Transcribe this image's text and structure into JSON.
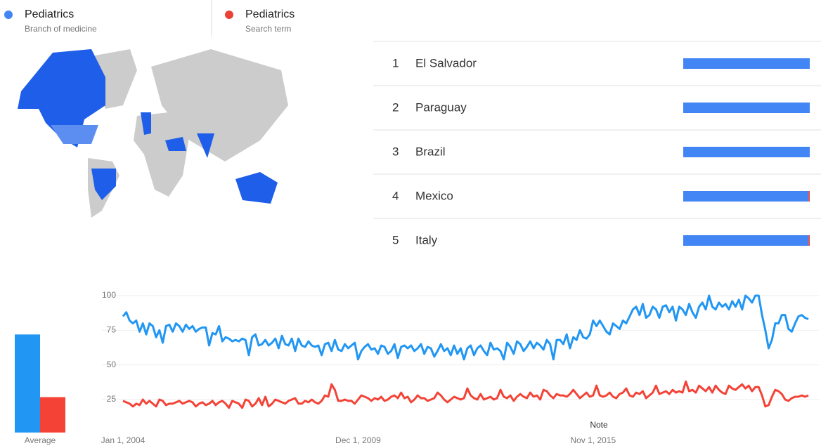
{
  "legend": [
    {
      "name": "Pediatrics",
      "subtitle": "Branch of medicine",
      "color": "#4285f4"
    },
    {
      "name": "Pediatrics",
      "subtitle": "Search term",
      "color": "#ea4335"
    }
  ],
  "regions": {
    "color": "#4285f4",
    "rows": [
      {
        "rank": 1,
        "name": "El Salvador",
        "values": [
          100,
          0
        ]
      },
      {
        "rank": 2,
        "name": "Paraguay",
        "values": [
          100,
          0
        ]
      },
      {
        "rank": 3,
        "name": "Brazil",
        "values": [
          100,
          0
        ]
      },
      {
        "rank": 4,
        "name": "Mexico",
        "values": [
          99,
          1
        ]
      },
      {
        "rank": 5,
        "name": "Italy",
        "values": [
          99,
          1
        ]
      }
    ]
  },
  "chart_data": [
    {
      "type": "bar",
      "categories": [
        "Average"
      ],
      "series": [
        {
          "name": "Pediatrics",
          "color": "#2196f3",
          "values": [
            72
          ]
        },
        {
          "name": "Pediatrics",
          "color": "#f44336",
          "values": [
            26
          ]
        }
      ],
      "ylim": [
        0,
        100
      ]
    },
    {
      "type": "line",
      "annotations": [
        "Note"
      ],
      "grid": true,
      "ylim": [
        0,
        100
      ],
      "yticks": [
        25,
        50,
        75,
        100
      ],
      "categories": [
        "Jan 1, 2004",
        null,
        null,
        null,
        null,
        null,
        null,
        null,
        null,
        null,
        null,
        null,
        null,
        null,
        null,
        null,
        null,
        null,
        null,
        null,
        null,
        null,
        null,
        null,
        null,
        null,
        null,
        null,
        null,
        null,
        null,
        null,
        null,
        null,
        null,
        null,
        null,
        null,
        null,
        null,
        null,
        null,
        null,
        null,
        null,
        null,
        null,
        null,
        null,
        null,
        null,
        null,
        null,
        null,
        null,
        null,
        null,
        null,
        null,
        null,
        null,
        null,
        null,
        null,
        null,
        null,
        null,
        null,
        null,
        null,
        null,
        "Dec 1, 2009",
        null,
        null,
        null,
        null,
        null,
        null,
        null,
        null,
        null,
        null,
        null,
        null,
        null,
        null,
        null,
        null,
        null,
        null,
        null,
        null,
        null,
        null,
        null,
        null,
        null,
        null,
        null,
        null,
        null,
        null,
        null,
        null,
        null,
        null,
        null,
        null,
        null,
        null,
        null,
        null,
        null,
        null,
        null,
        null,
        null,
        null,
        null,
        null,
        null,
        null,
        null,
        null,
        null,
        null,
        null,
        null,
        null,
        null,
        null,
        null,
        null,
        null,
        null,
        null,
        null,
        null,
        null,
        null,
        null,
        null,
        "Nov 1, 2015",
        null,
        null,
        null,
        null,
        null,
        null,
        null,
        null,
        null,
        null,
        null,
        null,
        null,
        null,
        null,
        null,
        null,
        null,
        null,
        null,
        null,
        null,
        null,
        null,
        null,
        null,
        null,
        null,
        null,
        null,
        null,
        null,
        null,
        null,
        null,
        null,
        null,
        null,
        null,
        null,
        null,
        null,
        null,
        null,
        null,
        null,
        null,
        null,
        null,
        null,
        null,
        null,
        null,
        null,
        null,
        null,
        null,
        null,
        null,
        null,
        null,
        null,
        null,
        null,
        null
      ],
      "series": [
        {
          "name": "Pediatrics",
          "color": "#2196f3",
          "values": [
            85,
            88,
            82,
            80,
            82,
            74,
            80,
            72,
            80,
            78,
            70,
            75,
            66,
            78,
            79,
            74,
            80,
            78,
            74,
            79,
            76,
            78,
            74,
            76,
            77,
            77,
            64,
            73,
            72,
            78,
            67,
            70,
            69,
            67,
            68,
            67,
            69,
            68,
            57,
            70,
            72,
            64,
            65,
            68,
            64,
            66,
            69,
            62,
            71,
            65,
            64,
            69,
            60,
            69,
            64,
            63,
            67,
            64,
            63,
            64,
            57,
            65,
            66,
            60,
            68,
            61,
            60,
            65,
            62,
            64,
            66,
            54,
            60,
            63,
            65,
            61,
            62,
            58,
            64,
            63,
            58,
            60,
            65,
            55,
            63,
            64,
            62,
            64,
            60,
            62,
            65,
            58,
            63,
            62,
            56,
            60,
            65,
            60,
            62,
            57,
            64,
            58,
            62,
            54,
            62,
            64,
            57,
            62,
            64,
            60,
            57,
            66,
            61,
            62,
            60,
            54,
            66,
            63,
            58,
            67,
            65,
            60,
            63,
            67,
            62,
            66,
            64,
            61,
            68,
            65,
            54,
            68,
            68,
            65,
            72,
            62,
            70,
            68,
            75,
            70,
            69,
            72,
            82,
            78,
            82,
            78,
            74,
            72,
            80,
            78,
            76,
            82,
            80,
            85,
            90,
            92,
            86,
            94,
            84,
            86,
            92,
            90,
            84,
            92,
            93,
            88,
            92,
            82,
            92,
            90,
            86,
            94,
            88,
            84,
            92,
            95,
            90,
            100,
            92,
            90,
            95,
            92,
            94,
            90,
            96,
            92,
            97,
            90,
            100,
            98,
            95,
            100,
            100,
            86,
            75,
            62,
            68,
            80,
            80,
            86,
            86,
            76,
            74,
            80,
            85,
            86,
            84,
            83
          ]
        },
        {
          "name": "Pediatrics",
          "color": "#f44336",
          "values": [
            24,
            23,
            22,
            20,
            22,
            21,
            25,
            22,
            24,
            22,
            20,
            25,
            24,
            21,
            22,
            22,
            23,
            24,
            22,
            23,
            24,
            23,
            20,
            22,
            23,
            21,
            22,
            24,
            21,
            23,
            24,
            22,
            19,
            24,
            23,
            22,
            19,
            25,
            24,
            20,
            22,
            26,
            21,
            27,
            20,
            22,
            25,
            24,
            23,
            22,
            24,
            25,
            26,
            22,
            22,
            24,
            23,
            25,
            23,
            22,
            24,
            28,
            27,
            36,
            32,
            24,
            24,
            25,
            24,
            24,
            22,
            25,
            28,
            27,
            26,
            24,
            26,
            25,
            27,
            24,
            25,
            27,
            28,
            26,
            30,
            26,
            27,
            23,
            25,
            28,
            26,
            26,
            24,
            25,
            26,
            30,
            28,
            25,
            23,
            25,
            27,
            26,
            25,
            26,
            33,
            28,
            26,
            25,
            29,
            25,
            26,
            27,
            25,
            26,
            32,
            27,
            26,
            28,
            24,
            27,
            29,
            27,
            26,
            30,
            27,
            28,
            25,
            32,
            31,
            28,
            26,
            29,
            28,
            28,
            27,
            29,
            32,
            29,
            26,
            28,
            30,
            27,
            28,
            35,
            28,
            27,
            28,
            30,
            27,
            26,
            29,
            30,
            33,
            28,
            27,
            30,
            29,
            31,
            26,
            28,
            30,
            35,
            29,
            30,
            31,
            29,
            32,
            30,
            31,
            30,
            38,
            31,
            32,
            30,
            35,
            33,
            31,
            34,
            30,
            35,
            32,
            30,
            29,
            35,
            33,
            32,
            34,
            36,
            33,
            35,
            31,
            34,
            34,
            28,
            20,
            21,
            27,
            32,
            31,
            29,
            25,
            24,
            26,
            27,
            27,
            28,
            27,
            28
          ]
        }
      ]
    }
  ]
}
